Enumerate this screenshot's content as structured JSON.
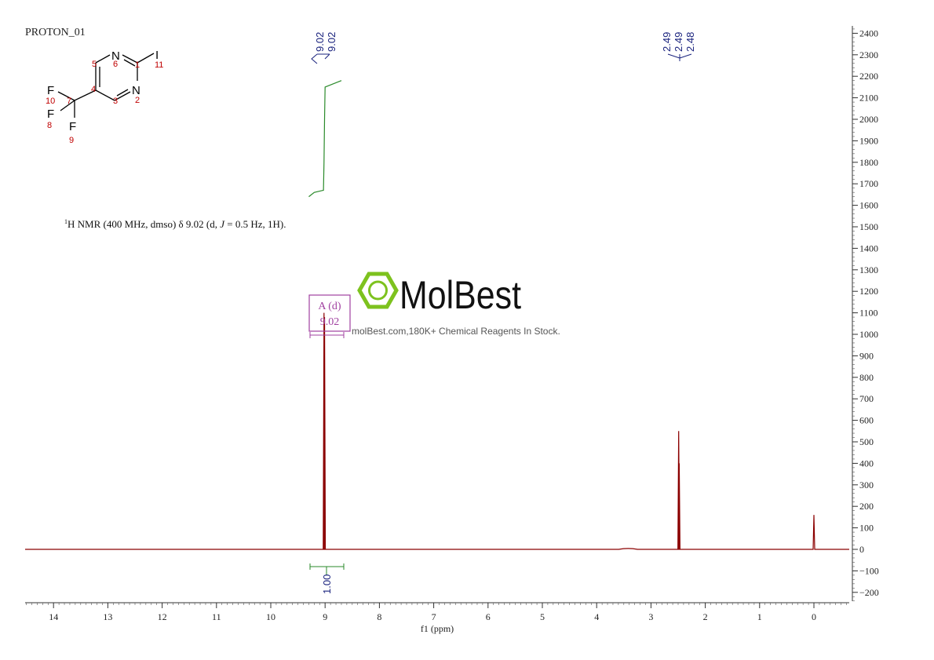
{
  "document_label": "PROTON_01",
  "nmr_summary": {
    "prefix_sup": "1",
    "text_a": "H NMR (400 MHz, dmso) δ 9.02 (d, ",
    "j_symbol": "J",
    "text_b": " = 0.5 Hz, 1H)."
  },
  "structure": {
    "atoms": [
      "N",
      "N",
      "I",
      "F",
      "F",
      "F"
    ],
    "numbers": [
      "1",
      "2",
      "3",
      "4",
      "5",
      "6",
      "7",
      "8",
      "9",
      "10",
      "11"
    ],
    "atom_color": "#000000",
    "number_color": "#c00000"
  },
  "watermark": {
    "brand": "MolBest",
    "tagline": "molBest.com,180K+ Chemical Reagents In Stock.",
    "icon": "benzene-hexagon-icon",
    "icon_color": "#7dc21e"
  },
  "multiplet": {
    "label": "A (d)",
    "value": "9.02",
    "color": "#a040a0"
  },
  "integral": {
    "value": "1.00",
    "color": "#2a8a2a"
  },
  "peak_labels": {
    "group1": [
      "9.02",
      "9.02"
    ],
    "group2": [
      "2.49",
      "2.49",
      "2.48"
    ],
    "color": "#1a237e"
  },
  "chart_data": {
    "type": "line",
    "xlabel": "f1 (ppm)",
    "x_reversed": true,
    "xlim": [
      14.6,
      -0.65
    ],
    "x_ticks": [
      14,
      13,
      12,
      11,
      10,
      9,
      8,
      7,
      6,
      5,
      4,
      3,
      2,
      1,
      0
    ],
    "ylim": [
      -240,
      2480
    ],
    "y_ticks": [
      -200,
      -100,
      0,
      100,
      200,
      300,
      400,
      500,
      600,
      700,
      800,
      900,
      1000,
      1100,
      1200,
      1300,
      1400,
      1500,
      1600,
      1700,
      1800,
      1900,
      2000,
      2100,
      2200,
      2300,
      2400
    ],
    "y_tick_labels": [
      "−200",
      "−100",
      "0",
      "100",
      "200",
      "300",
      "400",
      "500",
      "600",
      "700",
      "800",
      "900",
      "1000",
      "1100",
      "1200",
      "1300",
      "1400",
      "1500",
      "1600",
      "1700",
      "1800",
      "1900",
      "2000",
      "2100",
      "2200",
      "2300",
      "2400"
    ],
    "spectrum_color": "#8b0000",
    "integral_color": "#2a8a2a",
    "peaks": [
      {
        "ppm": 9.02,
        "height": 1100
      },
      {
        "ppm": 9.01,
        "height": 1080
      },
      {
        "ppm": 2.49,
        "height": 550
      },
      {
        "ppm": 2.48,
        "height": 400
      },
      {
        "ppm": 3.42,
        "height": 8
      },
      {
        "ppm": 0.0,
        "height": 160
      }
    ],
    "integral_trace": [
      [
        9.3,
        1640
      ],
      [
        9.2,
        1660
      ],
      [
        9.03,
        1670
      ],
      [
        9.02,
        1800
      ],
      [
        9.01,
        2000
      ],
      [
        9.0,
        2150
      ],
      [
        8.9,
        2160
      ],
      [
        8.7,
        2180
      ]
    ]
  }
}
